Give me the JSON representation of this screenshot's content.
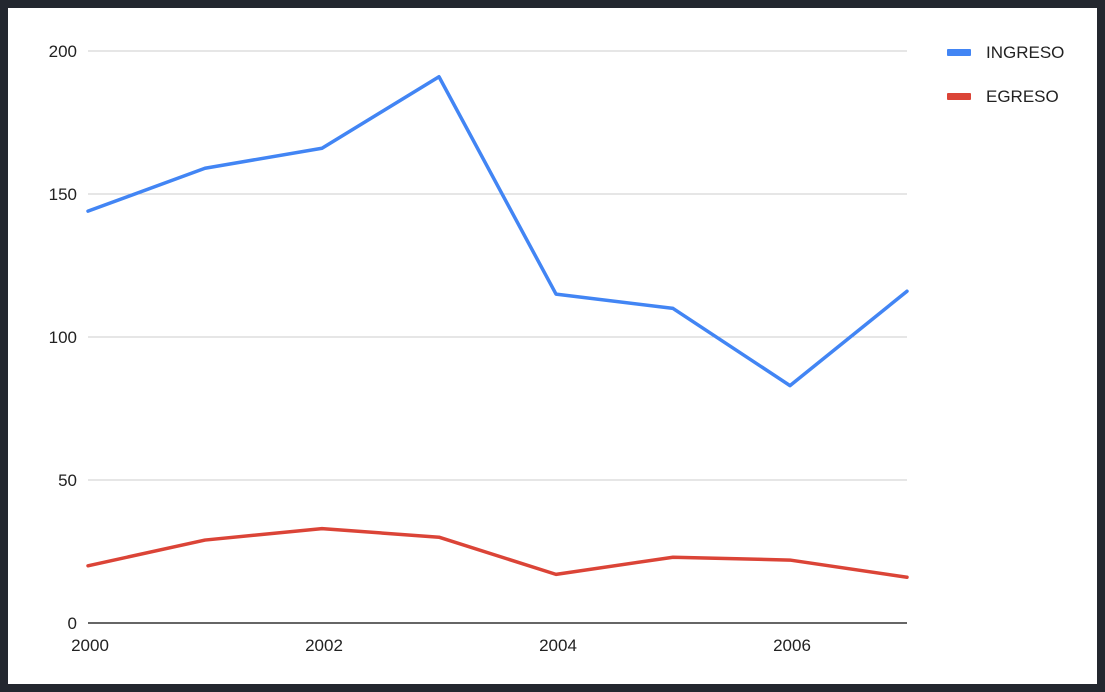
{
  "chart_data": {
    "type": "line",
    "title": "",
    "xlabel": "",
    "ylabel": "",
    "x": [
      2000,
      2001,
      2002,
      2003,
      2004,
      2005,
      2006,
      2007
    ],
    "x_tick_labels": [
      "2000",
      "2002",
      "2004",
      "2006"
    ],
    "y_tick_labels": [
      "0",
      "50",
      "100",
      "150",
      "200"
    ],
    "xlim": [
      2000,
      2007
    ],
    "ylim": [
      0,
      200
    ],
    "grid": true,
    "legend_position": "right",
    "series": [
      {
        "name": "INGRESO",
        "color": "#4285f4",
        "values": [
          144,
          159,
          166,
          191,
          115,
          110,
          83,
          116
        ]
      },
      {
        "name": "EGRESO",
        "color": "#db4437",
        "values": [
          20,
          29,
          33,
          30,
          17,
          23,
          22,
          16
        ]
      }
    ]
  }
}
